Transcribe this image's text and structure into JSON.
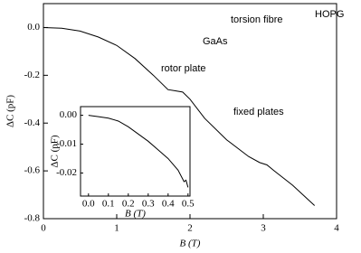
{
  "chart_data": [
    {
      "type": "line",
      "xlabel": "B (T)",
      "ylabel": "ΔC (pF)",
      "x": [
        0,
        0.25,
        0.5,
        0.75,
        1.0,
        1.25,
        1.5,
        1.7,
        1.8,
        1.9,
        2.0,
        2.2,
        2.5,
        2.8,
        2.95,
        3.05,
        3.15,
        3.4,
        3.7
      ],
      "y": [
        0,
        -0.003,
        -0.015,
        -0.04,
        -0.075,
        -0.13,
        -0.2,
        -0.26,
        -0.265,
        -0.27,
        -0.3,
        -0.38,
        -0.47,
        -0.54,
        -0.565,
        -0.575,
        -0.6,
        -0.66,
        -0.745
      ],
      "color": "#000000",
      "xlim": [
        0,
        4
      ],
      "ylim": [
        -0.8,
        0.1
      ],
      "xticks": [
        0,
        1,
        2,
        3,
        4
      ],
      "yticks": [
        {
          "value": 0,
          "label": "0.0"
        },
        -0.2,
        -0.4,
        -0.6,
        -0.8
      ],
      "annotations": [
        "torsion fibre",
        "HOPG",
        "GaAs",
        "rotor plate",
        "fixed plates"
      ]
    },
    {
      "type": "line",
      "xlabel": "B (T)",
      "ylabel": "ΔC (pF)",
      "x": [
        0,
        0.05,
        0.1,
        0.15,
        0.2,
        0.25,
        0.3,
        0.35,
        0.4,
        0.45,
        0.48,
        0.49,
        0.5
      ],
      "y": [
        0,
        -0.0005,
        -0.001,
        -0.002,
        -0.004,
        -0.0065,
        -0.009,
        -0.012,
        -0.015,
        -0.019,
        -0.023,
        -0.0225,
        -0.025
      ],
      "color": "#000000",
      "xlim": [
        -0.04,
        0.51
      ],
      "ylim": [
        -0.028,
        0.003
      ],
      "xticks": [
        {
          "value": 0,
          "label": "0.0"
        },
        0.1,
        0.2,
        0.3,
        0.4,
        0.5
      ],
      "yticks": [
        {
          "value": 0,
          "label": "0.00"
        },
        -0.01,
        -0.02
      ]
    }
  ]
}
